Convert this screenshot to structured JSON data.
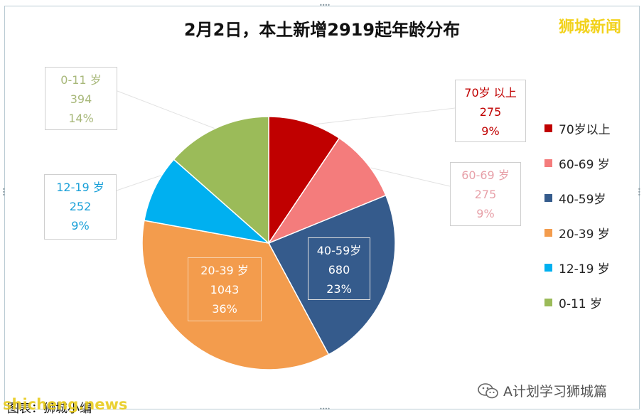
{
  "brand": {
    "logo_text": "狮城新闻",
    "site_watermark": "shicheng.news",
    "wechat_account": "A计划学习狮城篇"
  },
  "source_note": "图表：狮城小编",
  "chart_data": {
    "type": "pie",
    "title": "2月2日，本土新增2919起年龄分布",
    "start_angle": 0,
    "direction": "clockwise",
    "slices": [
      {
        "label": "70岁以上",
        "callout_label": "70岁 以上",
        "value": 275,
        "percent": "9%",
        "color": "#c00000",
        "callout_color": "#c00000"
      },
      {
        "label": "60-69 岁",
        "callout_label": "60-69 岁",
        "value": 275,
        "percent": "9%",
        "color": "#f47c7c",
        "callout_color": "#e7a0a8"
      },
      {
        "label": "40-59岁",
        "callout_label": "40-59岁",
        "value": 680,
        "percent": "23%",
        "color": "#355b8c",
        "callout_color": "#ffffff"
      },
      {
        "label": "20-39 岁",
        "callout_label": "20-39 岁",
        "value": 1043,
        "percent": "36%",
        "color": "#f39c4d",
        "callout_color": "#ffffff"
      },
      {
        "label": "12-19 岁",
        "callout_label": "12-19 岁",
        "value": 252,
        "percent": "9%",
        "color": "#00b0f0",
        "callout_color": "#1aa0d8"
      },
      {
        "label": "0-11 岁",
        "callout_label": "0-11 岁",
        "value": 394,
        "percent": "14%",
        "color": "#9bbb59",
        "callout_color": "#a8b87a"
      }
    ],
    "legend_position": "right"
  }
}
